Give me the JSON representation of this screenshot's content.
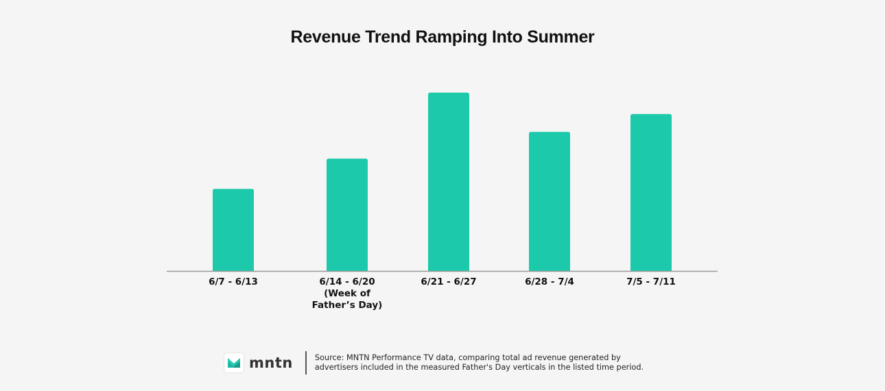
{
  "chart_data": {
    "type": "bar",
    "title": "Revenue Trend Ramping Into Summer",
    "categories": [
      [
        "6/7 - 6/13"
      ],
      [
        "6/14 - 6/20",
        "(Week of",
        "Father’s Day)"
      ],
      [
        "6/21 - 6/27"
      ],
      [
        "6/28 - 7/4"
      ],
      [
        "7/5 - 7/11"
      ]
    ],
    "values": [
      46,
      63,
      100,
      78,
      88
    ],
    "ylim": [
      0,
      100
    ],
    "xlabel": "",
    "ylabel": "",
    "grid": false,
    "bar_color": "#1cc9aa"
  },
  "footer": {
    "logo_text": "mntn",
    "source_line1": "Source: MNTN Performance TV data, comparing total ad revenue generated by",
    "source_line2": "advertisers included in the measured Father's Day verticals in the listed time period."
  }
}
